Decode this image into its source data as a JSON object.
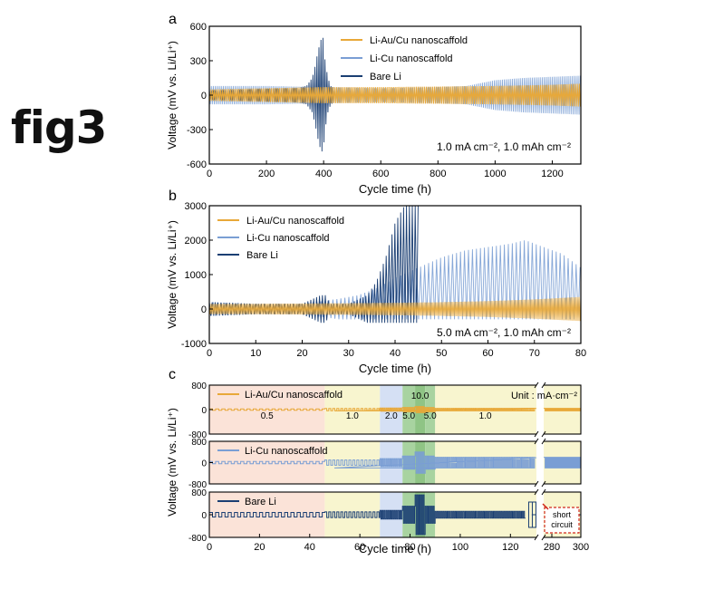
{
  "page": {
    "title": "fig3"
  },
  "colors": {
    "liau": "#E8A838",
    "licu": "#7A9ED4",
    "bare": "#1B3F73",
    "red": "#D0281C"
  },
  "legend_labels": [
    "Li-Au/Cu nanoscaffold",
    "Li-Cu nanoscaffold",
    "Bare Li"
  ],
  "chart_data": [
    {
      "type": "line",
      "panel": "a",
      "xlabel": "Cycle time (h)",
      "ylabel": "Voltage (mV vs. Li/Li⁺)",
      "xlim": [
        0,
        1300
      ],
      "ylim": [
        -600,
        600
      ],
      "x_ticks": [
        0,
        200,
        400,
        600,
        800,
        1000,
        1200
      ],
      "y_ticks": [
        -600,
        -300,
        0,
        300,
        600
      ],
      "condition": "1.0 mA cm⁻², 1.0 mAh cm⁻²",
      "legend_position": "top-right",
      "series": [
        {
          "name": "Li-Au/Cu nanoscaffold",
          "color_key": "liau",
          "x": [
            0,
            100,
            200,
            300,
            400,
            600,
            800,
            1000,
            1200,
            1300
          ],
          "amplitude": [
            50,
            55,
            60,
            65,
            70,
            70,
            75,
            80,
            90,
            100
          ]
        },
        {
          "name": "Li-Cu nanoscaffold",
          "color_key": "licu",
          "x": [
            0,
            100,
            200,
            300,
            400,
            600,
            800,
            900,
            1000,
            1100,
            1200,
            1300
          ],
          "amplitude": [
            80,
            80,
            80,
            75,
            70,
            60,
            70,
            80,
            130,
            150,
            160,
            170
          ]
        },
        {
          "name": "Bare Li",
          "color_key": "bare",
          "x": [
            0,
            100,
            200,
            300,
            340,
            360,
            370,
            380,
            390,
            398,
            405,
            415,
            425,
            440
          ],
          "amplitude": [
            40,
            45,
            55,
            60,
            80,
            150,
            250,
            380,
            480,
            500,
            300,
            150,
            80,
            60
          ]
        }
      ]
    },
    {
      "type": "line",
      "panel": "b",
      "xlabel": "Cycle time (h)",
      "ylabel": "Voltage (mV vs. Li/Li⁺)",
      "xlim": [
        0,
        80
      ],
      "ylim": [
        -1000,
        3000
      ],
      "x_ticks": [
        0,
        10,
        20,
        30,
        40,
        50,
        60,
        70,
        80
      ],
      "y_ticks": [
        -1000,
        0,
        1000,
        2000,
        3000
      ],
      "condition": "5.0 mA cm⁻², 1.0 mAh cm⁻²",
      "legend_position": "top-left",
      "series": [
        {
          "name": "Li-Au/Cu nanoscaffold",
          "color_key": "liau",
          "x": [
            0,
            10,
            20,
            30,
            40,
            50,
            60,
            70,
            80
          ],
          "amplitude": [
            150,
            150,
            160,
            170,
            180,
            200,
            230,
            280,
            350
          ]
        },
        {
          "name": "Li-Cu nanoscaffold",
          "color_key": "licu",
          "x": [
            0,
            10,
            20,
            28,
            32,
            36,
            40,
            45,
            50,
            55,
            60,
            65,
            68,
            72,
            76,
            80
          ],
          "amplitude": [
            200,
            150,
            150,
            300,
            400,
            600,
            900,
            1200,
            1500,
            1700,
            1800,
            1900,
            2000,
            1800,
            1600,
            1200
          ],
          "negative_amplitude": 300
        },
        {
          "name": "Bare Li",
          "color_key": "bare",
          "x": [
            0,
            10,
            20,
            24,
            25,
            26,
            30,
            34,
            36,
            38,
            40,
            42,
            44,
            45
          ],
          "amplitude": [
            200,
            150,
            150,
            400,
            400,
            150,
            150,
            400,
            800,
            1500,
            2500,
            3000,
            3000,
            3000
          ],
          "negative_amplitude": 400
        }
      ]
    },
    {
      "type": "line",
      "panel": "c",
      "xlabel": "Cycle time (h)",
      "ylabel": "Voltage (mV vs. Li/Li⁺)",
      "x_ticks": [
        "0",
        "20",
        "40",
        "60",
        "80",
        "100",
        "120",
        "280",
        "300"
      ],
      "x_break": "between 130 and 275",
      "y_ticks": [
        -800,
        0,
        800
      ],
      "unit_label": "Unit : mA·cm⁻²",
      "current_density_regions": [
        {
          "label": "0.5",
          "from": 0,
          "to": 46,
          "color": "#FBE3D8"
        },
        {
          "label": "1.0",
          "from": 46,
          "to": 68,
          "color": "#F8F5CF"
        },
        {
          "label": "2.0",
          "from": 68,
          "to": 77,
          "color": "#D5E0F4"
        },
        {
          "label": "5.0",
          "from": 77,
          "to": 82,
          "color": "#A8D3A0"
        },
        {
          "label": "10.0",
          "from": 82,
          "to": 86,
          "color": "#8FC485"
        },
        {
          "label": "5.0",
          "from": 86,
          "to": 90,
          "color": "#A8D3A0"
        },
        {
          "label": "1.0",
          "from": 90,
          "to": 300,
          "color": "#F8F5CF"
        }
      ],
      "annotation": "short circuit",
      "series": [
        {
          "name": "Li-Au/Cu nanoscaffold",
          "color_key": "liau",
          "amplitude_by_region": [
            25,
            35,
            50,
            70,
            100,
            70,
            40
          ]
        },
        {
          "name": "Li-Cu nanoscaffold",
          "color_key": "licu",
          "amplitude_by_region": [
            40,
            100,
            150,
            250,
            400,
            250,
            200
          ]
        },
        {
          "name": "Bare Li",
          "color_key": "bare",
          "amplitude_by_region": [
            80,
            100,
            150,
            300,
            700,
            300,
            120
          ],
          "short_circuit_near": 128
        }
      ]
    }
  ]
}
